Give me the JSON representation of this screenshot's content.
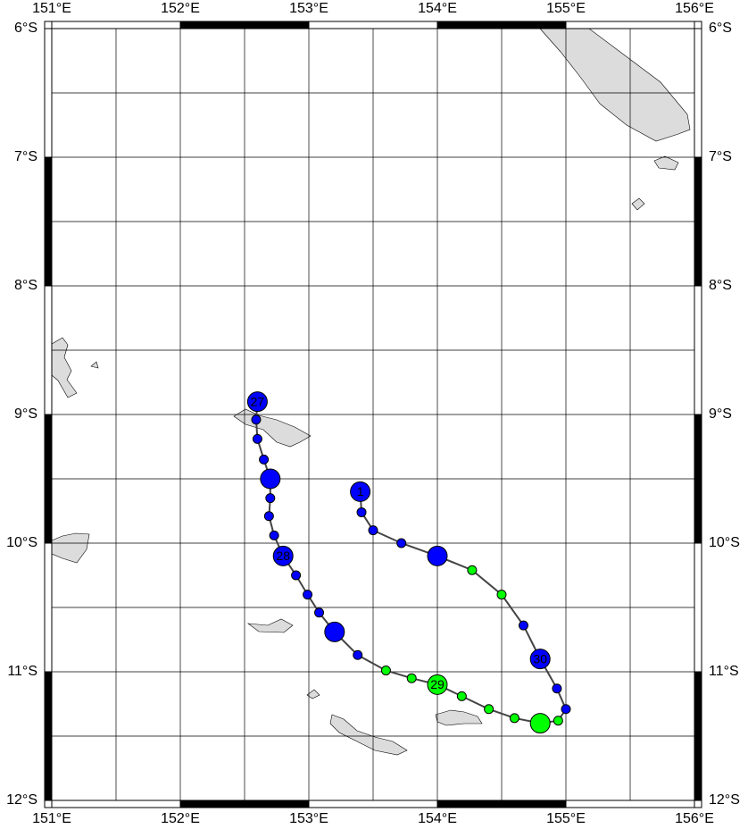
{
  "map": {
    "lon_range": [
      151,
      156
    ],
    "lat_range": [
      -6,
      -12
    ],
    "grid_interval": 0.5,
    "lon_ticks": [
      {
        "value": 151,
        "label": "151°E"
      },
      {
        "value": 152,
        "label": "152°E"
      },
      {
        "value": 153,
        "label": "153°E"
      },
      {
        "value": 154,
        "label": "154°E"
      },
      {
        "value": 155,
        "label": "155°E"
      },
      {
        "value": 156,
        "label": "156°E"
      }
    ],
    "lat_ticks": [
      {
        "value": -6,
        "label": "6°S"
      },
      {
        "value": -7,
        "label": "7°S"
      },
      {
        "value": -8,
        "label": "8°S"
      },
      {
        "value": -9,
        "label": "9°S"
      },
      {
        "value": -10,
        "label": "10°S"
      },
      {
        "value": -11,
        "label": "11°S"
      },
      {
        "value": -12,
        "label": "12°S"
      }
    ],
    "track_color": "#444444",
    "points": [
      {
        "lon": 152.6,
        "lat": -8.9,
        "color": "#0000ff",
        "size": "large",
        "label": "27"
      },
      {
        "lon": 152.59,
        "lat": -9.04,
        "color": "#0000ff",
        "size": "small",
        "label": null
      },
      {
        "lon": 152.6,
        "lat": -9.19,
        "color": "#0000ff",
        "size": "small",
        "label": null
      },
      {
        "lon": 152.65,
        "lat": -9.35,
        "color": "#0000ff",
        "size": "small",
        "label": null
      },
      {
        "lon": 152.7,
        "lat": -9.5,
        "color": "#0000ff",
        "size": "large",
        "label": null
      },
      {
        "lon": 152.7,
        "lat": -9.65,
        "color": "#0000ff",
        "size": "small",
        "label": null
      },
      {
        "lon": 152.69,
        "lat": -9.79,
        "color": "#0000ff",
        "size": "small",
        "label": null
      },
      {
        "lon": 152.73,
        "lat": -9.94,
        "color": "#0000ff",
        "size": "small",
        "label": null
      },
      {
        "lon": 152.8,
        "lat": -10.1,
        "color": "#0000ff",
        "size": "large",
        "label": "28"
      },
      {
        "lon": 152.9,
        "lat": -10.25,
        "color": "#0000ff",
        "size": "small",
        "label": null
      },
      {
        "lon": 152.99,
        "lat": -10.4,
        "color": "#0000ff",
        "size": "small",
        "label": null
      },
      {
        "lon": 153.08,
        "lat": -10.54,
        "color": "#0000ff",
        "size": "small",
        "label": null
      },
      {
        "lon": 153.2,
        "lat": -10.69,
        "color": "#0000ff",
        "size": "large",
        "label": null
      },
      {
        "lon": 153.38,
        "lat": -10.87,
        "color": "#0000ff",
        "size": "small",
        "label": null
      },
      {
        "lon": 153.6,
        "lat": -10.99,
        "color": "#00ff00",
        "size": "small",
        "label": null
      },
      {
        "lon": 153.8,
        "lat": -11.05,
        "color": "#00ff00",
        "size": "small",
        "label": null
      },
      {
        "lon": 154.0,
        "lat": -11.1,
        "color": "#00ff00",
        "size": "large",
        "label": "29"
      },
      {
        "lon": 154.19,
        "lat": -11.19,
        "color": "#00ff00",
        "size": "small",
        "label": null
      },
      {
        "lon": 154.4,
        "lat": -11.29,
        "color": "#00ff00",
        "size": "small",
        "label": null
      },
      {
        "lon": 154.6,
        "lat": -11.36,
        "color": "#00ff00",
        "size": "small",
        "label": null
      },
      {
        "lon": 154.8,
        "lat": -11.4,
        "color": "#00ff00",
        "size": "large",
        "label": null
      },
      {
        "lon": 154.94,
        "lat": -11.38,
        "color": "#00ff00",
        "size": "small",
        "label": null
      },
      {
        "lon": 155.0,
        "lat": -11.29,
        "color": "#0000ff",
        "size": "small",
        "label": null
      },
      {
        "lon": 154.93,
        "lat": -11.13,
        "color": "#0000ff",
        "size": "small",
        "label": null
      },
      {
        "lon": 154.8,
        "lat": -10.9,
        "color": "#0000ff",
        "size": "large",
        "label": "30"
      },
      {
        "lon": 154.67,
        "lat": -10.64,
        "color": "#0000ff",
        "size": "small",
        "label": null
      },
      {
        "lon": 154.5,
        "lat": -10.4,
        "color": "#00ff00",
        "size": "small",
        "label": null
      },
      {
        "lon": 154.27,
        "lat": -10.21,
        "color": "#00ff00",
        "size": "small",
        "label": null
      },
      {
        "lon": 154.0,
        "lat": -10.1,
        "color": "#0000ff",
        "size": "large",
        "label": null
      },
      {
        "lon": 153.72,
        "lat": -10.0,
        "color": "#0000ff",
        "size": "small",
        "label": null
      },
      {
        "lon": 153.5,
        "lat": -9.9,
        "color": "#0000ff",
        "size": "small",
        "label": null
      },
      {
        "lon": 153.41,
        "lat": -9.76,
        "color": "#0000ff",
        "size": "small",
        "label": null
      },
      {
        "lon": 153.4,
        "lat": -9.6,
        "color": "#0000ff",
        "size": "large",
        "label": "1"
      }
    ]
  }
}
